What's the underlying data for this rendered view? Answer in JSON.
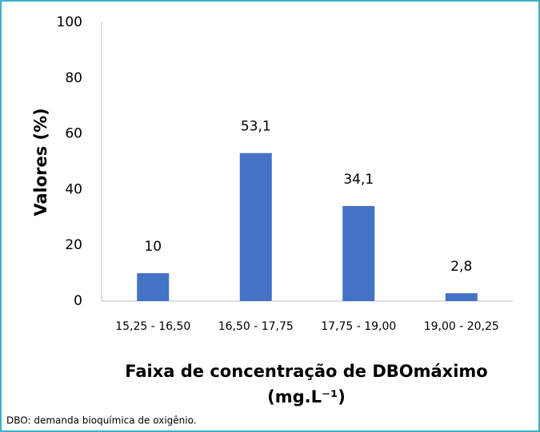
{
  "chart_data": {
    "type": "bar",
    "y_label": "Valores (%)",
    "x_label": [
      "Faixa de concentração de DBOmáximo",
      "(mg.L⁻¹)"
    ],
    "categories": [
      "15,25 - 16,50",
      "16,50 - 17,75",
      "17,75 - 19,00",
      "19,00 - 20,25"
    ],
    "values": [
      10,
      53.1,
      34.1,
      2.8
    ],
    "value_labels": [
      "10",
      "53,1",
      "34,1",
      "2,8"
    ],
    "color": "#4472c4",
    "ylim": [
      0,
      100
    ],
    "yticks": [
      0,
      20,
      40,
      60,
      80,
      100
    ],
    "grid": false
  },
  "footnote": "DBO: demanda bioquímica de oxigênio."
}
